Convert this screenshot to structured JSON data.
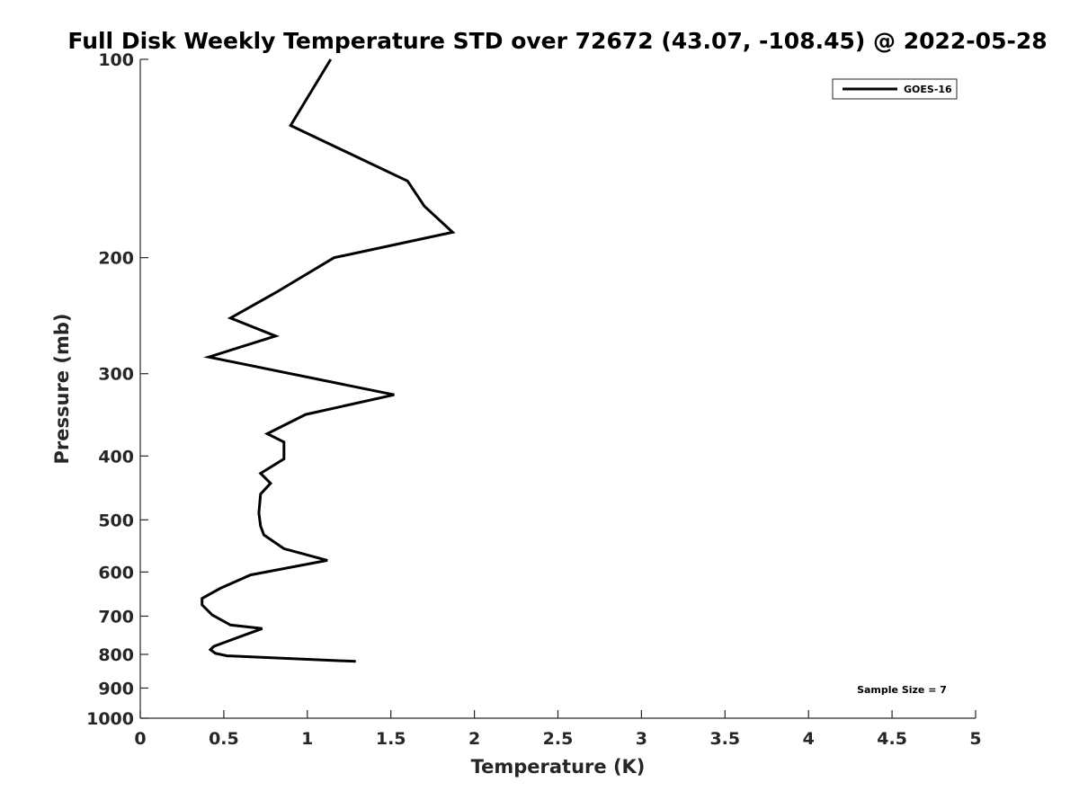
{
  "chart_data": {
    "type": "line",
    "title": "Full Disk Weekly Temperature STD over 72672 (43.07, -108.45) @ 2022-05-28",
    "xlabel": "Temperature (K)",
    "ylabel": "Pressure (mb)",
    "xlim": [
      0,
      5
    ],
    "ylim": [
      1000,
      100
    ],
    "yscale": "log",
    "y_reversed": true,
    "grid": false,
    "legend_position": "top-right",
    "x_ticks": [
      "0",
      "0.5",
      "1",
      "1.5",
      "2",
      "2.5",
      "3",
      "3.5",
      "4",
      "4.5",
      "5"
    ],
    "y_ticks": [
      "100",
      "200",
      "300",
      "400",
      "500",
      "600",
      "700",
      "800",
      "900",
      "1000"
    ],
    "annotation": "Sample Size = 7",
    "series": [
      {
        "name": "GOES-16",
        "color": "#000000",
        "points": [
          [
            1.14,
            100
          ],
          [
            0.9,
            126
          ],
          [
            1.6,
            153
          ],
          [
            1.7,
            167
          ],
          [
            1.87,
            183
          ],
          [
            1.16,
            200
          ],
          [
            0.81,
            226
          ],
          [
            0.54,
            247
          ],
          [
            0.81,
            263
          ],
          [
            0.41,
            283
          ],
          [
            1.52,
            323
          ],
          [
            0.99,
            346
          ],
          [
            0.76,
            370
          ],
          [
            0.86,
            381
          ],
          [
            0.86,
            404
          ],
          [
            0.72,
            425
          ],
          [
            0.78,
            440
          ],
          [
            0.72,
            457
          ],
          [
            0.71,
            488
          ],
          [
            0.72,
            511
          ],
          [
            0.74,
            527
          ],
          [
            0.86,
            553
          ],
          [
            1.12,
            576
          ],
          [
            0.66,
            606
          ],
          [
            0.48,
            635
          ],
          [
            0.37,
            658
          ],
          [
            0.37,
            673
          ],
          [
            0.43,
            697
          ],
          [
            0.54,
            722
          ],
          [
            0.73,
            731
          ],
          [
            0.56,
            758
          ],
          [
            0.44,
            778
          ],
          [
            0.42,
            787
          ],
          [
            0.45,
            797
          ],
          [
            0.52,
            804
          ],
          [
            1.29,
            820
          ]
        ]
      }
    ]
  }
}
